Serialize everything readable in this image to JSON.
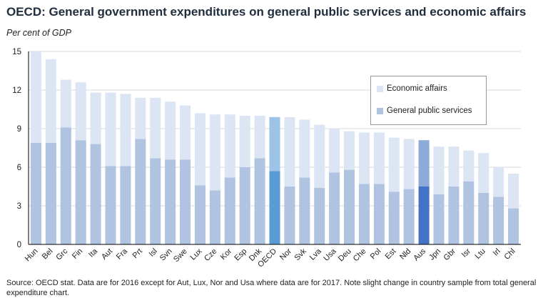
{
  "title": "OECD: General government expenditures on general public services and economic affairs",
  "subtitle": "Per cent of GDP",
  "source": "Source: OECD stat.  Data are for 2016 except for Aut, Lux, Nor and Usa where data are for 2017. Note slight change in country sample from total general expenditure chart.",
  "colors": {
    "gps": "#b0c4e2",
    "econ": "#dce5f3",
    "oecd_gps": "#5b9bd5",
    "oecd_econ": "#9dc3e6",
    "aus_gps": "#4472c4",
    "aus_econ": "#8eaadb",
    "grid": "#d9d9d9",
    "axis": "#000000"
  },
  "chart_data": {
    "type": "bar",
    "stacked": true,
    "title": "OECD: General government expenditures on general public services and economic affairs",
    "ylabel": "Per cent of GDP",
    "xlabel": "",
    "ylim": [
      0,
      15
    ],
    "yticks": [
      0,
      3,
      6,
      9,
      12,
      15
    ],
    "grid": true,
    "legend_position": "top-right",
    "categories": [
      "Hun",
      "Bel",
      "Grc",
      "Fin",
      "Ita",
      "Aut",
      "Fra",
      "Prt",
      "Isl",
      "Svn",
      "Swe",
      "Lux",
      "Cze",
      "Kor",
      "Esp",
      "Dnk",
      "OECD",
      "Nor",
      "Svk",
      "Lva",
      "Usa",
      "Deu",
      "Che",
      "Pol",
      "Est",
      "Nld",
      "Aus",
      "Jpn",
      "Gbr",
      "Isr",
      "Ltu",
      "Irl",
      "Chl"
    ],
    "highlight": {
      "OECD": [
        "oecd_gps",
        "oecd_econ"
      ],
      "Aus": [
        "aus_gps",
        "aus_econ"
      ]
    },
    "series": [
      {
        "name": "General public services",
        "color_key": "gps",
        "values": [
          7.9,
          7.9,
          9.1,
          8.1,
          7.8,
          6.1,
          6.1,
          8.2,
          6.7,
          6.6,
          6.6,
          4.6,
          4.2,
          5.2,
          6.0,
          6.7,
          5.7,
          4.5,
          5.2,
          4.4,
          5.6,
          5.8,
          4.7,
          4.7,
          4.1,
          4.3,
          4.5,
          3.9,
          4.5,
          4.9,
          4.0,
          3.7,
          2.8
        ]
      },
      {
        "name": "Economic affairs",
        "color_key": "econ",
        "values": [
          7.1,
          6.5,
          3.7,
          4.5,
          4.0,
          5.7,
          5.6,
          3.2,
          4.7,
          4.5,
          4.2,
          5.6,
          5.9,
          4.9,
          4.0,
          3.3,
          4.2,
          5.4,
          4.5,
          4.9,
          3.4,
          3.0,
          4.0,
          4.0,
          4.2,
          3.9,
          3.6,
          3.7,
          3.1,
          2.4,
          3.1,
          2.3,
          2.7
        ]
      }
    ],
    "legend": [
      "Economic affairs",
      "General public services"
    ]
  }
}
